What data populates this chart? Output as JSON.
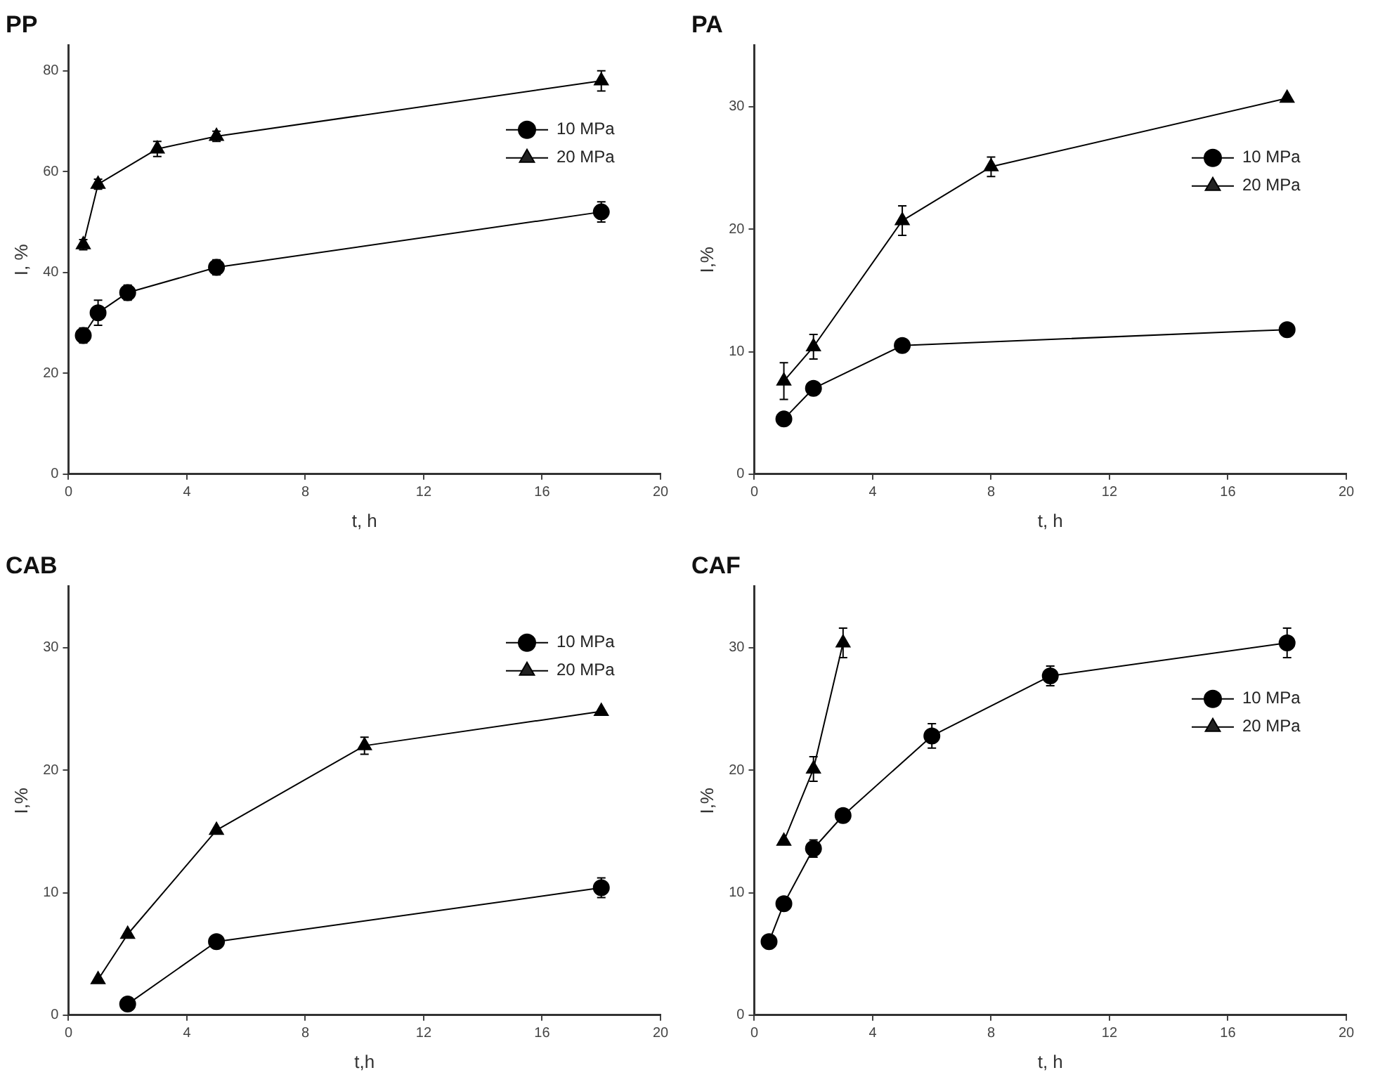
{
  "chart_data": [
    {
      "type": "line",
      "title": "PP",
      "xlabel": "t, h",
      "ylabel": "I, %",
      "xlim": [
        0,
        20
      ],
      "xticks": [
        0,
        4,
        8,
        12,
        16,
        20
      ],
      "ylim": [
        0,
        85
      ],
      "yticks": [
        0,
        20,
        40,
        60,
        80
      ],
      "legend": "top right",
      "grid": false,
      "line_style": "solid",
      "series": [
        {
          "name": "10 MPa",
          "color": "#000000",
          "marker": "circle",
          "x": [
            0.5,
            1,
            2,
            5,
            18
          ],
          "values": [
            27.5,
            32,
            36,
            41,
            52
          ],
          "errors": [
            1.5,
            2.5,
            1.5,
            1.5,
            2
          ]
        },
        {
          "name": "20 MPa",
          "color": "#000000",
          "marker": "triangle",
          "x": [
            0.5,
            1,
            3,
            5,
            18
          ],
          "values": [
            45.5,
            57.5,
            64.5,
            67,
            78
          ],
          "errors": [
            1,
            1,
            1.5,
            1,
            2
          ]
        }
      ]
    },
    {
      "type": "line",
      "title": "PA",
      "xlabel": "t, h",
      "ylabel": "I,%",
      "xlim": [
        0,
        20
      ],
      "xticks": [
        0,
        4,
        8,
        12,
        16,
        20
      ],
      "ylim": [
        0,
        35
      ],
      "yticks": [
        0,
        10,
        20,
        30
      ],
      "legend": "top right",
      "grid": false,
      "line_style": "solid",
      "series": [
        {
          "name": "10 MPa",
          "color": "#000000",
          "marker": "circle",
          "x": [
            1,
            2,
            5,
            18
          ],
          "values": [
            4.5,
            7.0,
            10.5,
            11.8
          ]
        },
        {
          "name": "20 MPa",
          "color": "#000000",
          "marker": "triangle",
          "x": [
            1,
            2,
            5,
            8,
            18
          ],
          "values": [
            7.6,
            10.4,
            20.7,
            25.1,
            30.7
          ],
          "errors": [
            1.5,
            1,
            1.2,
            0.8,
            null
          ]
        }
      ]
    },
    {
      "type": "line",
      "title": "CAB",
      "xlabel": "t,h",
      "ylabel": "I,%",
      "xlim": [
        0,
        20
      ],
      "xticks": [
        0,
        4,
        8,
        12,
        16,
        20
      ],
      "ylim": [
        0,
        35
      ],
      "yticks": [
        0,
        10,
        20,
        30
      ],
      "legend": "top right",
      "grid": false,
      "line_style": "solid",
      "series": [
        {
          "name": "10 MPa",
          "color": "#000000",
          "marker": "circle",
          "x": [
            2,
            5,
            18
          ],
          "values": [
            0.9,
            6.0,
            10.4
          ],
          "errors": [
            null,
            null,
            0.8
          ]
        },
        {
          "name": "20 MPa",
          "color": "#000000",
          "marker": "triangle",
          "x": [
            1,
            2,
            5,
            10,
            18
          ],
          "values": [
            2.9,
            6.6,
            15.1,
            22.0,
            24.8
          ],
          "errors": [
            null,
            null,
            null,
            0.7,
            null
          ]
        }
      ]
    },
    {
      "type": "line",
      "title": "CAF",
      "xlabel": "t, h",
      "ylabel": "I,%",
      "xlim": [
        0,
        20
      ],
      "xticks": [
        0,
        4,
        8,
        12,
        16,
        20
      ],
      "ylim": [
        0,
        35
      ],
      "yticks": [
        0,
        10,
        20,
        30
      ],
      "legend": "top right",
      "grid": false,
      "line_style": "solid",
      "series": [
        {
          "name": "10 MPa",
          "color": "#000000",
          "marker": "circle",
          "x": [
            0.5,
            1,
            2,
            3,
            6,
            10,
            18
          ],
          "values": [
            6.0,
            9.1,
            13.6,
            16.3,
            22.8,
            27.7,
            30.4
          ],
          "errors": [
            null,
            null,
            0.7,
            null,
            1,
            0.8,
            1.2
          ]
        },
        {
          "name": "20 MPa",
          "color": "#000000",
          "marker": "triangle",
          "x": [
            1,
            2,
            3
          ],
          "values": [
            14.2,
            20.1,
            30.4
          ],
          "errors": [
            null,
            1,
            1.2
          ]
        }
      ]
    }
  ]
}
